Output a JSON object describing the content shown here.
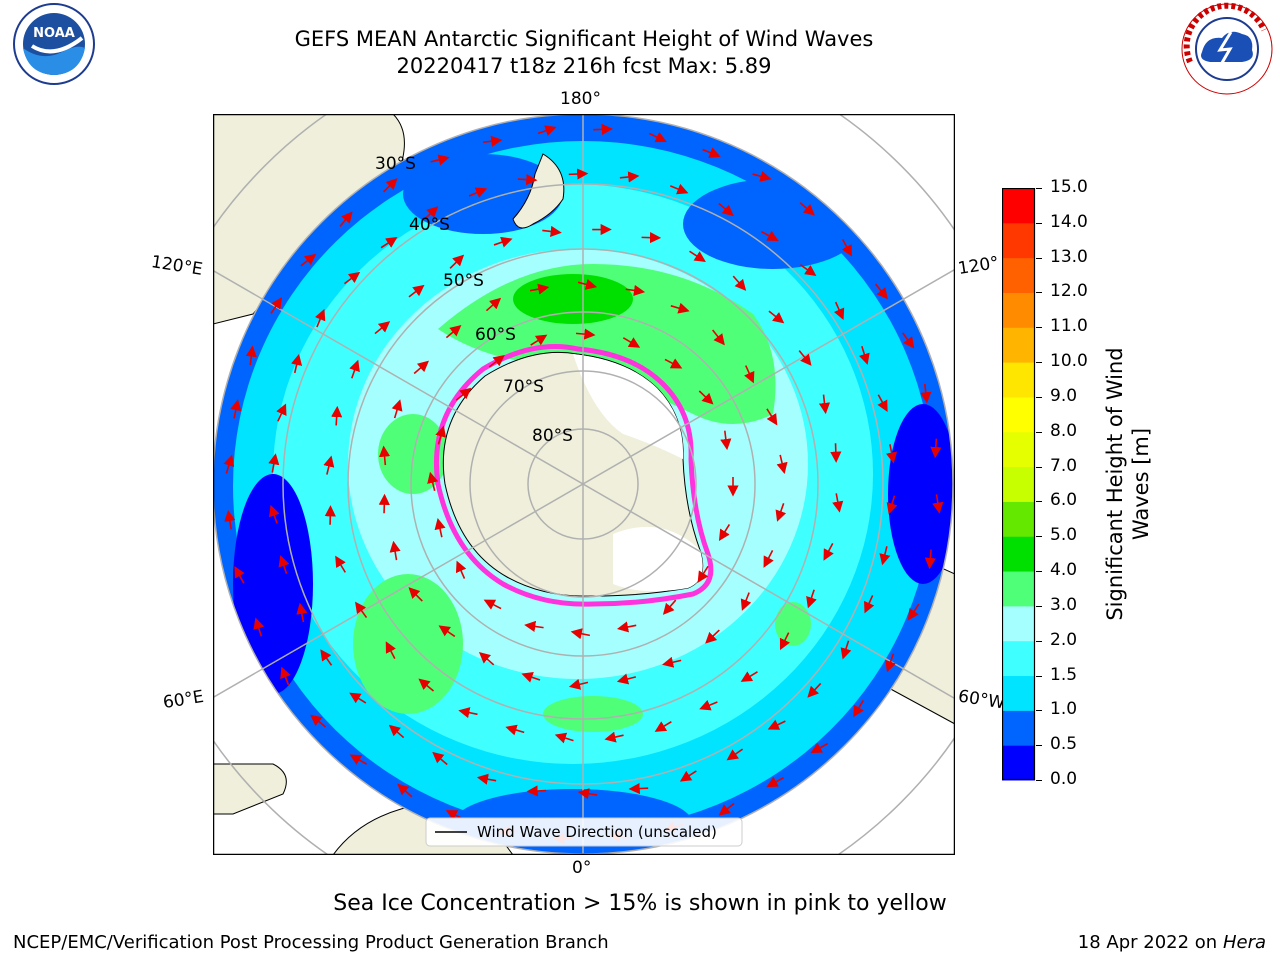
{
  "title_line1": "GEFS MEAN Antarctic Significant Height of Wind Waves",
  "title_line2": "20220417 t18z 216h fcst   Max: 5.89",
  "caption": "Sea Ice Concentration > 15% is shown in pink to yellow",
  "footer_left": "NCEP/EMC/Verification Post Processing Product Generation Branch",
  "footer_right_date": "18 Apr 2022 on ",
  "footer_right_host": "Hera",
  "logos": {
    "noaa_text": "NOAA",
    "nws_text": "NATIONAL WEATHER SERVICE"
  },
  "map": {
    "projection": "south-polar-stereographic",
    "lon_labels": {
      "top": "180°",
      "bottom": "0°",
      "left_upper": "120°E",
      "left_lower": "60°E",
      "right_upper": "120°",
      "right_lower": "60°W"
    },
    "lat_labels": [
      "30°S",
      "40°S",
      "50°S",
      "60°S",
      "70°S",
      "80°S"
    ],
    "legend_label": "Wind Wave Direction (unscaled)"
  },
  "colorbar": {
    "title_line1": "Significant Height of Wind",
    "title_line2": "Waves [m]",
    "ticks": [
      "0.0",
      "0.5",
      "1.0",
      "1.5",
      "2.0",
      "3.0",
      "4.0",
      "5.0",
      "6.0",
      "7.0",
      "8.0",
      "9.0",
      "10.0",
      "11.0",
      "12.0",
      "13.0",
      "14.0",
      "15.0"
    ],
    "colors": [
      "#0000ff",
      "#0064ff",
      "#00e4ff",
      "#40ffff",
      "#a6ffff",
      "#50ff78",
      "#00e000",
      "#64e800",
      "#c8ff00",
      "#e6ff00",
      "#ffff00",
      "#ffe600",
      "#ffb400",
      "#ff8c00",
      "#ff6000",
      "#ff3800",
      "#ff0000"
    ]
  }
}
